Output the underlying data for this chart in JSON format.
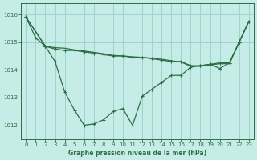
{
  "background_color": "#c5ece6",
  "grid_color": "#9dd4cc",
  "line_color": "#2d6e45",
  "title": "Graphe pression niveau de la mer (hPa)",
  "xlim": [
    -0.5,
    23.5
  ],
  "ylim": [
    1011.5,
    1016.4
  ],
  "yticks": [
    1012,
    1013,
    1014,
    1015,
    1016
  ],
  "xticks": [
    0,
    1,
    2,
    3,
    4,
    5,
    6,
    7,
    8,
    9,
    10,
    11,
    12,
    13,
    14,
    15,
    16,
    17,
    18,
    19,
    20,
    21,
    22,
    23
  ],
  "series1_x": [
    0,
    1,
    2,
    3,
    4,
    5,
    6,
    7,
    8,
    9,
    10,
    11,
    12,
    13,
    14,
    15,
    16,
    17,
    18,
    19,
    20,
    21,
    22,
    23
  ],
  "series1_y": [
    1015.9,
    1015.15,
    1014.85,
    1014.3,
    1013.2,
    1012.55,
    1012.0,
    1012.05,
    1012.2,
    1012.5,
    1012.6,
    1012.0,
    1013.05,
    1013.3,
    1013.55,
    1013.8,
    1013.8,
    1014.1,
    1014.15,
    1014.2,
    1014.05,
    1014.25,
    1015.0,
    1015.75
  ],
  "series2_x": [
    0,
    2,
    3,
    4,
    5,
    6,
    7,
    8,
    9,
    10,
    11,
    12,
    13,
    14,
    15,
    16,
    17,
    18,
    19,
    20,
    21,
    22,
    23
  ],
  "series2_y": [
    1015.9,
    1014.85,
    1014.75,
    1014.7,
    1014.7,
    1014.65,
    1014.6,
    1014.55,
    1014.5,
    1014.5,
    1014.45,
    1014.45,
    1014.4,
    1014.35,
    1014.3,
    1014.3,
    1014.15,
    1014.15,
    1014.2,
    1014.25,
    1014.25,
    1015.0,
    1015.75
  ],
  "series3_x": [
    0,
    2,
    3,
    4,
    5,
    6,
    7,
    8,
    9,
    10,
    11,
    12,
    13,
    14,
    15,
    16,
    17,
    18,
    19,
    20,
    21,
    22,
    23
  ],
  "series3_y": [
    1015.9,
    1014.85,
    1014.8,
    1014.78,
    1014.72,
    1014.68,
    1014.63,
    1014.58,
    1014.52,
    1014.5,
    1014.47,
    1014.45,
    1014.42,
    1014.38,
    1014.33,
    1014.28,
    1014.13,
    1014.13,
    1014.18,
    1014.22,
    1014.22,
    1015.0,
    1015.75
  ],
  "lw": 0.9,
  "ms": 2.2,
  "title_fontsize": 5.5,
  "tick_fontsize": 5.0
}
